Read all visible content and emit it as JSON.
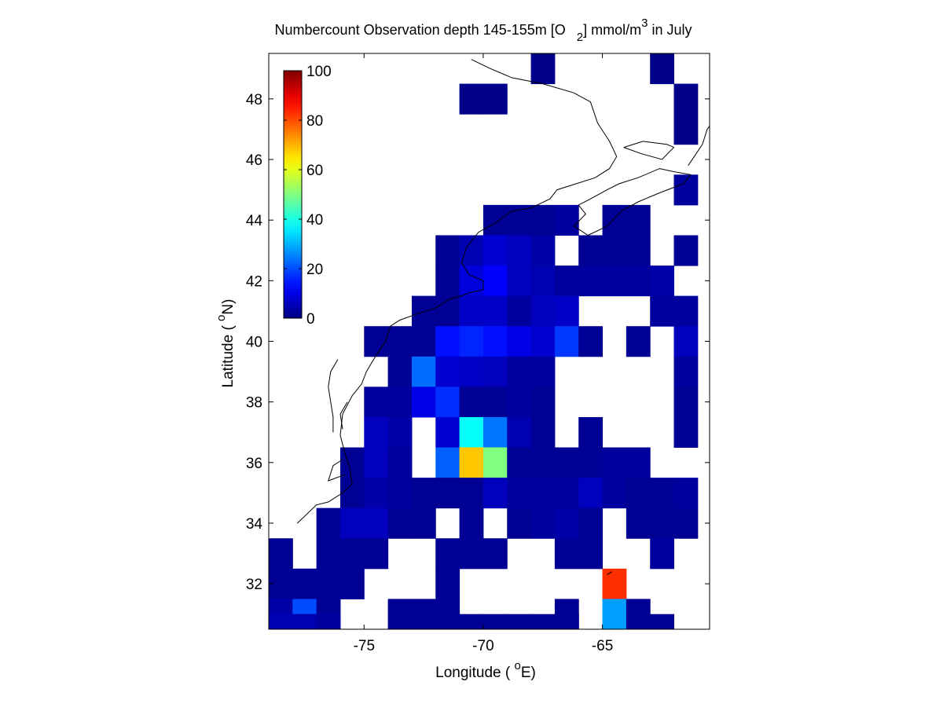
{
  "chart_data": {
    "type": "heatmap",
    "title": {
      "main": "Numbercount Observation depth 145-155m [O",
      "sub": "2",
      "mid": "] mmol/m",
      "sup": "3",
      "end": " in July"
    },
    "xlabel": {
      "pre": "Longitude ( ",
      "sup": "o",
      "post": "E)"
    },
    "ylabel": {
      "pre": "Latitude ( ",
      "sup": "o",
      "post": "N)"
    },
    "xlim": [
      -79.0,
      -60.5
    ],
    "ylim": [
      30.5,
      49.5
    ],
    "xticks": [
      -75,
      -70,
      -65
    ],
    "xtick_labels": [
      "-75",
      "-70",
      "-65"
    ],
    "yticks": [
      32,
      34,
      36,
      38,
      40,
      42,
      44,
      46,
      48
    ],
    "ytick_labels": [
      "32",
      "34",
      "36",
      "38",
      "40",
      "42",
      "44",
      "46",
      "48"
    ],
    "colorbar": {
      "colormap": "jet",
      "range": [
        0,
        100
      ],
      "ticks": [
        0,
        20,
        40,
        60,
        80,
        100
      ],
      "tick_labels": [
        "0",
        "20",
        "40",
        "60",
        "80",
        "100"
      ]
    },
    "grid": false,
    "cell_size_deg": [
      1.0,
      1.0
    ],
    "cells": [
      [
        -67.5,
        49.0,
        1
      ],
      [
        -62.5,
        49.0,
        1
      ],
      [
        -70.5,
        48.0,
        1
      ],
      [
        -69.5,
        48.0,
        1
      ],
      [
        -61.5,
        48.0,
        1
      ],
      [
        -61.5,
        47.0,
        1
      ],
      [
        -61.5,
        45.0,
        3
      ],
      [
        -69.5,
        44.0,
        2
      ],
      [
        -68.5,
        44.0,
        2
      ],
      [
        -67.5,
        44.0,
        2
      ],
      [
        -66.5,
        44.0,
        3
      ],
      [
        -64.5,
        44.0,
        2
      ],
      [
        -63.5,
        44.0,
        2
      ],
      [
        -71.5,
        43.0,
        2
      ],
      [
        -70.5,
        43.0,
        5
      ],
      [
        -69.5,
        43.0,
        8
      ],
      [
        -68.5,
        43.0,
        6
      ],
      [
        -67.5,
        43.0,
        4
      ],
      [
        -65.5,
        43.0,
        2
      ],
      [
        -64.5,
        43.0,
        2
      ],
      [
        -63.5,
        43.0,
        2
      ],
      [
        -61.5,
        43.0,
        2
      ],
      [
        -71.5,
        42.0,
        2
      ],
      [
        -70.5,
        42.0,
        9
      ],
      [
        -69.5,
        42.0,
        12
      ],
      [
        -68.5,
        42.0,
        6
      ],
      [
        -67.5,
        42.0,
        5
      ],
      [
        -66.5,
        42.0,
        3
      ],
      [
        -65.5,
        42.0,
        3
      ],
      [
        -64.5,
        42.0,
        3
      ],
      [
        -63.5,
        42.0,
        3
      ],
      [
        -62.5,
        42.0,
        4
      ],
      [
        -72.5,
        41.0,
        2
      ],
      [
        -71.5,
        41.0,
        2
      ],
      [
        -70.5,
        41.0,
        7
      ],
      [
        -69.5,
        41.0,
        7
      ],
      [
        -68.5,
        41.0,
        3
      ],
      [
        -67.5,
        41.0,
        6
      ],
      [
        -66.5,
        41.0,
        7
      ],
      [
        -62.5,
        41.0,
        3
      ],
      [
        -61.5,
        41.0,
        3
      ],
      [
        -74.5,
        40.0,
        2
      ],
      [
        -73.5,
        40.0,
        2
      ],
      [
        -72.5,
        40.0,
        2
      ],
      [
        -71.5,
        40.0,
        14
      ],
      [
        -70.5,
        40.0,
        16
      ],
      [
        -69.5,
        40.0,
        14
      ],
      [
        -68.5,
        40.0,
        10
      ],
      [
        -67.5,
        40.0,
        8
      ],
      [
        -66.5,
        40.0,
        18
      ],
      [
        -65.5,
        40.0,
        2
      ],
      [
        -63.5,
        40.0,
        2
      ],
      [
        -61.5,
        40.0,
        6
      ],
      [
        -73.5,
        39.0,
        2
      ],
      [
        -72.5,
        39.0,
        23
      ],
      [
        -71.5,
        39.0,
        8
      ],
      [
        -70.5,
        39.0,
        7
      ],
      [
        -69.5,
        39.0,
        6
      ],
      [
        -68.5,
        39.0,
        3
      ],
      [
        -67.5,
        39.0,
        3
      ],
      [
        -61.5,
        39.0,
        3
      ],
      [
        -74.5,
        38.0,
        3
      ],
      [
        -73.5,
        38.0,
        3
      ],
      [
        -72.5,
        38.0,
        10
      ],
      [
        -71.5,
        38.0,
        17
      ],
      [
        -70.5,
        38.0,
        2
      ],
      [
        -69.5,
        38.0,
        2
      ],
      [
        -68.5,
        38.0,
        3
      ],
      [
        -67.5,
        38.0,
        2
      ],
      [
        -61.5,
        38.0,
        2
      ],
      [
        -74.5,
        37.0,
        6
      ],
      [
        -73.5,
        37.0,
        4
      ],
      [
        -71.5,
        37.0,
        8
      ],
      [
        -70.5,
        37.0,
        38
      ],
      [
        -69.5,
        37.0,
        24
      ],
      [
        -68.5,
        37.0,
        5
      ],
      [
        -67.5,
        37.0,
        2
      ],
      [
        -65.5,
        37.0,
        2
      ],
      [
        -61.5,
        37.0,
        2
      ],
      [
        -75.5,
        36.0,
        2
      ],
      [
        -74.5,
        36.0,
        6
      ],
      [
        -73.5,
        36.0,
        3
      ],
      [
        -71.5,
        36.0,
        22
      ],
      [
        -70.5,
        36.0,
        68
      ],
      [
        -69.5,
        36.0,
        50
      ],
      [
        -68.5,
        36.0,
        2
      ],
      [
        -67.5,
        36.0,
        2
      ],
      [
        -66.5,
        36.0,
        2
      ],
      [
        -65.5,
        36.0,
        2
      ],
      [
        -64.5,
        36.0,
        3
      ],
      [
        -63.5,
        36.0,
        3
      ],
      [
        -75.5,
        35.0,
        2
      ],
      [
        -74.5,
        35.0,
        4
      ],
      [
        -73.5,
        35.0,
        3
      ],
      [
        -72.5,
        35.0,
        2
      ],
      [
        -71.5,
        35.0,
        2
      ],
      [
        -70.5,
        35.0,
        2
      ],
      [
        -69.5,
        35.0,
        6
      ],
      [
        -68.5,
        35.0,
        3
      ],
      [
        -67.5,
        35.0,
        3
      ],
      [
        -66.5,
        35.0,
        3
      ],
      [
        -65.5,
        35.0,
        6
      ],
      [
        -64.5,
        35.0,
        3
      ],
      [
        -63.5,
        35.0,
        2
      ],
      [
        -62.5,
        35.0,
        2
      ],
      [
        -61.5,
        35.0,
        3
      ],
      [
        -76.5,
        34.0,
        2
      ],
      [
        -75.5,
        34.0,
        6
      ],
      [
        -74.5,
        34.0,
        6
      ],
      [
        -73.5,
        34.0,
        2
      ],
      [
        -72.5,
        34.0,
        2
      ],
      [
        -70.5,
        34.0,
        2
      ],
      [
        -68.5,
        34.0,
        2
      ],
      [
        -67.5,
        34.0,
        3
      ],
      [
        -66.5,
        34.0,
        4
      ],
      [
        -65.5,
        34.0,
        2
      ],
      [
        -63.5,
        34.0,
        2
      ],
      [
        -62.5,
        34.0,
        2
      ],
      [
        -61.5,
        34.0,
        2
      ],
      [
        -78.5,
        33.0,
        2
      ],
      [
        -76.5,
        33.0,
        2
      ],
      [
        -75.5,
        33.0,
        2
      ],
      [
        -74.5,
        33.0,
        2
      ],
      [
        -71.5,
        33.0,
        2
      ],
      [
        -70.5,
        33.0,
        2
      ],
      [
        -69.5,
        33.0,
        2
      ],
      [
        -66.5,
        33.0,
        2
      ],
      [
        -65.5,
        33.0,
        2
      ],
      [
        -62.5,
        33.0,
        3
      ],
      [
        -78.5,
        32.0,
        2
      ],
      [
        -77.5,
        32.0,
        2
      ],
      [
        -76.5,
        32.0,
        2
      ],
      [
        -75.5,
        32.0,
        2
      ],
      [
        -71.5,
        32.0,
        2
      ],
      [
        -64.5,
        32.0,
        83
      ],
      [
        -78.5,
        31.0,
        4
      ],
      [
        -77.5,
        31.0,
        20
      ],
      [
        -76.5,
        31.0,
        2
      ],
      [
        -73.5,
        31.0,
        2
      ],
      [
        -72.5,
        31.0,
        2
      ],
      [
        -71.5,
        31.0,
        2
      ],
      [
        -66.5,
        31.0,
        2
      ],
      [
        -64.5,
        31.0,
        28
      ],
      [
        -63.5,
        31.0,
        2
      ],
      [
        -78.5,
        30.5,
        5
      ],
      [
        -77.5,
        30.5,
        5
      ],
      [
        -76.5,
        30.5,
        3
      ],
      [
        -72.5,
        30.5,
        2
      ],
      [
        -71.5,
        30.5,
        2
      ],
      [
        -70.5,
        30.5,
        2
      ],
      [
        -69.5,
        30.5,
        2
      ],
      [
        -68.5,
        30.5,
        2
      ],
      [
        -67.5,
        30.5,
        2
      ],
      [
        -66.5,
        30.5,
        2
      ],
      [
        -62.5,
        30.5,
        2
      ]
    ],
    "coastline": {
      "color": "#000000",
      "segments": [
        [
          [
            -77.8,
            34.0
          ],
          [
            -77.0,
            34.6
          ],
          [
            -76.5,
            34.7
          ],
          [
            -75.9,
            35.0
          ],
          [
            -75.5,
            35.3
          ],
          [
            -75.6,
            35.8
          ],
          [
            -75.8,
            36.3
          ],
          [
            -76.0,
            36.9
          ],
          [
            -75.9,
            37.6
          ],
          [
            -75.5,
            38.2
          ],
          [
            -75.1,
            38.6
          ],
          [
            -74.9,
            39.0
          ],
          [
            -74.6,
            39.4
          ],
          [
            -74.1,
            40.0
          ],
          [
            -73.9,
            40.5
          ],
          [
            -73.5,
            40.7
          ],
          [
            -72.8,
            40.9
          ],
          [
            -72.0,
            41.1
          ],
          [
            -71.4,
            41.4
          ],
          [
            -70.9,
            41.5
          ],
          [
            -70.6,
            41.6
          ],
          [
            -70.0,
            41.7
          ],
          [
            -70.0,
            42.0
          ],
          [
            -70.6,
            42.2
          ],
          [
            -70.9,
            42.6
          ],
          [
            -70.7,
            43.1
          ],
          [
            -70.2,
            43.6
          ],
          [
            -69.5,
            43.9
          ],
          [
            -68.8,
            44.3
          ],
          [
            -68.0,
            44.4
          ],
          [
            -67.2,
            44.7
          ],
          [
            -66.9,
            45.0
          ],
          [
            -66.1,
            45.2
          ],
          [
            -65.3,
            45.4
          ],
          [
            -64.7,
            45.7
          ],
          [
            -64.4,
            46.1
          ],
          [
            -64.7,
            46.6
          ],
          [
            -65.2,
            47.2
          ],
          [
            -65.5,
            47.9
          ],
          [
            -66.2,
            48.2
          ],
          [
            -67.5,
            48.5
          ],
          [
            -68.8,
            48.7
          ],
          [
            -69.7,
            49.0
          ],
          [
            -70.5,
            49.3
          ]
        ],
        [
          [
            -66.0,
            44.5
          ],
          [
            -65.7,
            44.2
          ],
          [
            -66.2,
            43.8
          ],
          [
            -65.6,
            43.5
          ],
          [
            -64.8,
            43.8
          ],
          [
            -64.2,
            44.3
          ],
          [
            -63.5,
            44.6
          ],
          [
            -62.6,
            44.9
          ],
          [
            -61.6,
            45.2
          ],
          [
            -61.3,
            45.5
          ],
          [
            -62.0,
            45.6
          ],
          [
            -62.6,
            45.7
          ],
          [
            -63.5,
            45.4
          ],
          [
            -64.3,
            45.2
          ],
          [
            -64.8,
            45.0
          ],
          [
            -65.5,
            44.7
          ],
          [
            -66.0,
            44.5
          ]
        ],
        [
          [
            -61.4,
            45.8
          ],
          [
            -60.8,
            46.5
          ],
          [
            -60.6,
            47.0
          ],
          [
            -60.5,
            47.1
          ]
        ],
        [
          [
            -64.1,
            46.4
          ],
          [
            -63.3,
            46.6
          ],
          [
            -62.3,
            46.5
          ],
          [
            -62.0,
            46.4
          ],
          [
            -62.5,
            46.0
          ],
          [
            -63.4,
            46.2
          ],
          [
            -64.1,
            46.4
          ]
        ],
        [
          [
            -76.3,
            37.0
          ],
          [
            -76.3,
            37.5
          ],
          [
            -76.4,
            38.0
          ],
          [
            -76.5,
            38.5
          ],
          [
            -76.4,
            39.0
          ],
          [
            -76.1,
            39.4
          ]
        ],
        [
          [
            -75.9,
            37.1
          ],
          [
            -76.0,
            37.6
          ],
          [
            -75.7,
            38.0
          ]
        ],
        [
          [
            -75.8,
            35.6
          ],
          [
            -76.5,
            35.4
          ],
          [
            -76.3,
            35.9
          ],
          [
            -75.9,
            36.1
          ]
        ],
        [
          [
            -64.8,
            32.3
          ],
          [
            -64.6,
            32.4
          ]
        ]
      ]
    }
  }
}
